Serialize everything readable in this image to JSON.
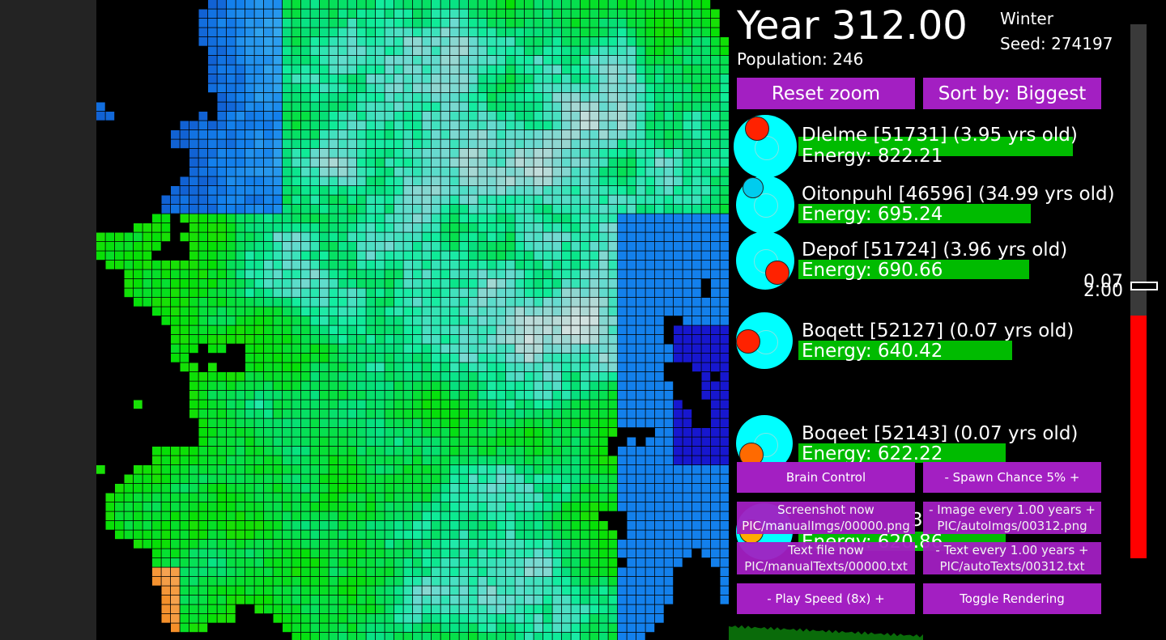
{
  "hud": {
    "year": "Year 312.00",
    "population": "Population: 246",
    "season": "Winter",
    "seed": "Seed: 274197"
  },
  "buttons": {
    "reset_zoom": "Reset zoom",
    "sort_by": "Sort by: Biggest",
    "brain_control": "Brain Control",
    "spawn_chance": "-   Spawn Chance 5%   +",
    "screenshot_now": "Screenshot now",
    "screenshot_path": "PIC/manualImgs/00000.png",
    "image_every": "-   Image every 1.00 years   +",
    "image_path": "PIC/autoImgs/00312.png",
    "text_file_now": "Text file now",
    "text_file_path": "PIC/manualTexts/00000.txt",
    "text_every": "-   Text every 1.00 years   +",
    "text_path": "PIC/autoTexts/00312.txt",
    "play_speed": "-    Play Speed (8x)    +",
    "toggle_rendering": "Toggle Rendering"
  },
  "creatures": [
    {
      "name": "Dlelme [51731] (3.95 yrs old)",
      "energy": "Energy: 822.21",
      "energy_value": 822.21,
      "body_color": "#00ffff",
      "mouth_color": "#ff2200"
    },
    {
      "name": "Oitonpuhl [46596] (34.99 yrs old)",
      "energy": "Energy: 695.24",
      "energy_value": 695.24,
      "body_color": "#00ffff",
      "mouth_color": "#00ccee"
    },
    {
      "name": "Depof [51724] (3.96 yrs old)",
      "energy": "Energy: 690.66",
      "energy_value": 690.66,
      "body_color": "#00ffff",
      "mouth_color": "#ff2200"
    },
    {
      "name": "Boqett [52127] (0.07 yrs old)",
      "energy": "Energy: 640.42",
      "energy_value": 640.42,
      "body_color": "#00ffff",
      "mouth_color": "#ff2200"
    },
    {
      "name": "Boqeet [52143] (0.07 yrs old)",
      "energy": "Energy: 622.22",
      "energy_value": 622.22,
      "body_color": "#00ffff",
      "mouth_color": "#ff6a00"
    },
    {
      "name_fragment": "3",
      "energy": "Energy: 620.86",
      "energy_value": 620.86,
      "body_color": "#00ffff",
      "mouth_color": "#ffaa00"
    }
  ],
  "temperature": {
    "label_upper": "0.07",
    "label_lower": "2.00",
    "level_fraction": 0.5,
    "fill_color": "#ff0000"
  }
}
